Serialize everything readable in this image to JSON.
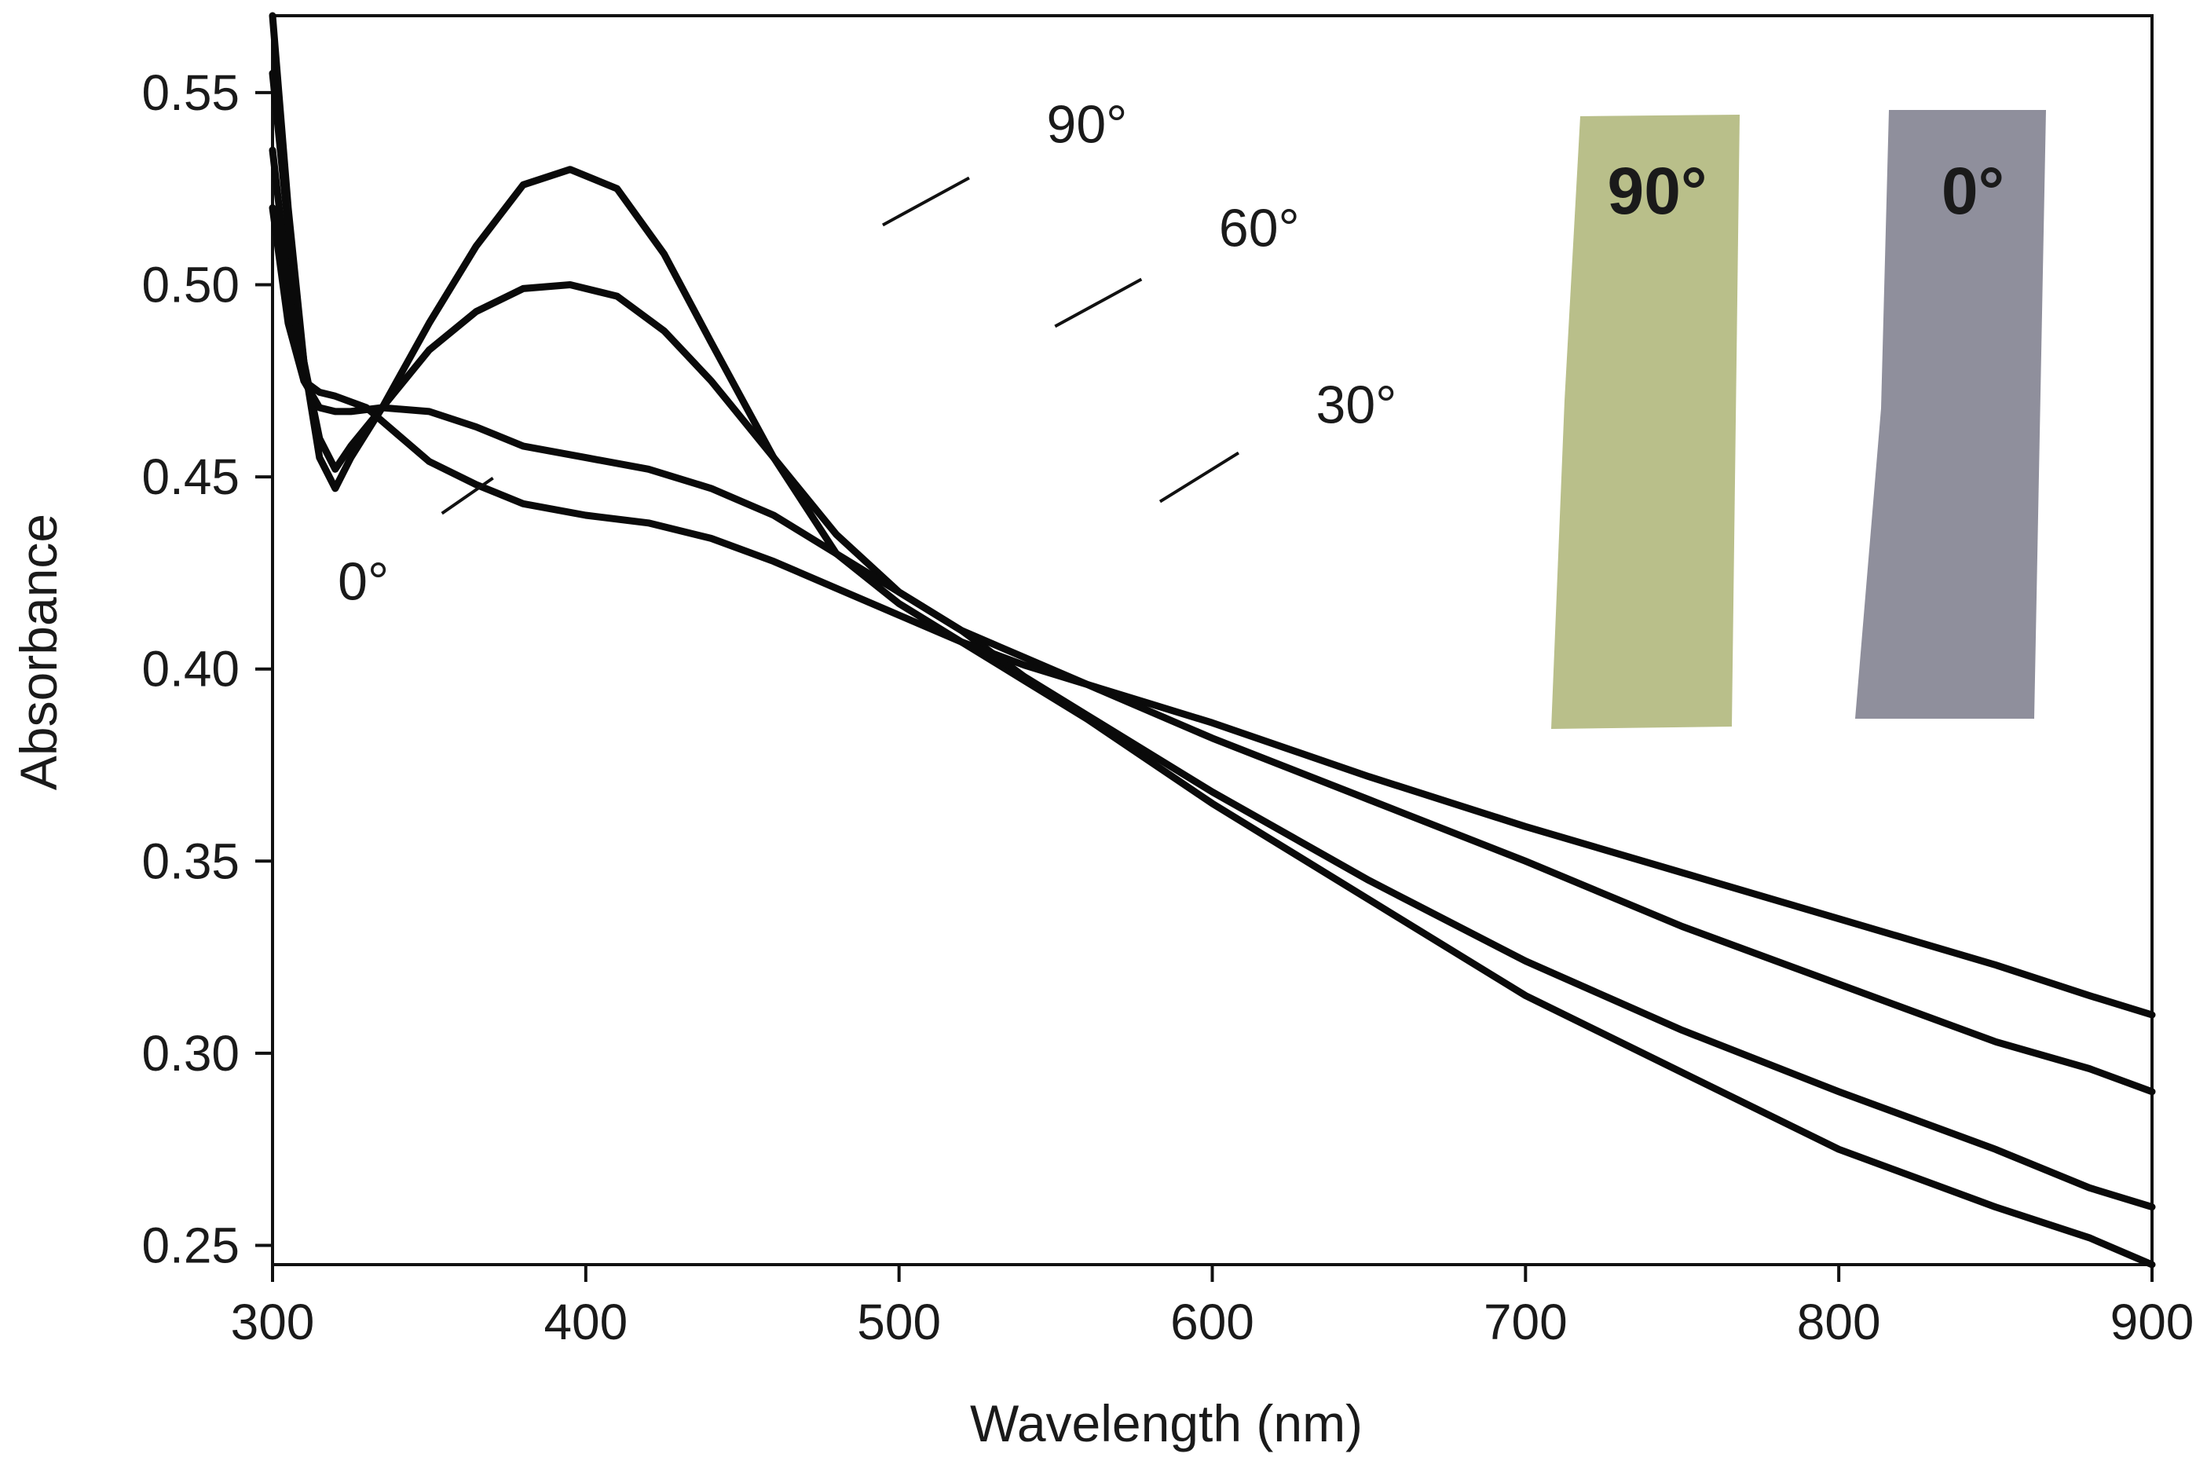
{
  "chart_data": {
    "type": "line",
    "title": "",
    "xlabel": "Wavelength (nm)",
    "ylabel": "Absorbance",
    "xlim": [
      300,
      900
    ],
    "ylim": [
      0.245,
      0.57
    ],
    "xticks": [
      300,
      400,
      500,
      600,
      700,
      800,
      900
    ],
    "xtick_labels": [
      "300",
      "400",
      "500",
      "600",
      "700",
      "800",
      "900"
    ],
    "yticks": [
      0.25,
      0.3,
      0.35,
      0.4,
      0.45,
      0.5,
      0.55
    ],
    "ytick_labels": [
      "0.25",
      "0.30",
      "0.35",
      "0.40",
      "0.45",
      "0.50",
      "0.55"
    ],
    "grid": false,
    "series": [
      {
        "name": "90°",
        "x": [
          300,
          305,
          310,
          315,
          320,
          325,
          335,
          350,
          365,
          380,
          395,
          410,
          425,
          440,
          460,
          480,
          500,
          520,
          540,
          560,
          600,
          650,
          700,
          750,
          800,
          850,
          880,
          900
        ],
        "y": [
          0.57,
          0.52,
          0.48,
          0.455,
          0.447,
          0.455,
          0.468,
          0.49,
          0.51,
          0.526,
          0.53,
          0.525,
          0.508,
          0.485,
          0.455,
          0.43,
          0.417,
          0.407,
          0.397,
          0.387,
          0.365,
          0.34,
          0.315,
          0.295,
          0.275,
          0.26,
          0.252,
          0.245
        ]
      },
      {
        "name": "60°",
        "x": [
          300,
          305,
          310,
          315,
          320,
          325,
          335,
          350,
          365,
          380,
          395,
          410,
          425,
          440,
          460,
          480,
          500,
          520,
          540,
          560,
          600,
          650,
          700,
          750,
          800,
          850,
          880,
          900
        ],
        "y": [
          0.555,
          0.515,
          0.48,
          0.46,
          0.452,
          0.458,
          0.468,
          0.483,
          0.493,
          0.499,
          0.5,
          0.497,
          0.488,
          0.475,
          0.455,
          0.435,
          0.42,
          0.41,
          0.398,
          0.388,
          0.368,
          0.345,
          0.324,
          0.306,
          0.29,
          0.275,
          0.265,
          0.26
        ]
      },
      {
        "name": "30°",
        "x": [
          300,
          305,
          310,
          315,
          320,
          325,
          335,
          350,
          365,
          380,
          400,
          420,
          440,
          460,
          480,
          500,
          520,
          540,
          560,
          600,
          650,
          700,
          750,
          800,
          850,
          880,
          900
        ],
        "y": [
          0.535,
          0.5,
          0.475,
          0.468,
          0.467,
          0.467,
          0.468,
          0.467,
          0.463,
          0.458,
          0.455,
          0.452,
          0.447,
          0.44,
          0.43,
          0.42,
          0.41,
          0.403,
          0.396,
          0.382,
          0.366,
          0.35,
          0.333,
          0.318,
          0.303,
          0.296,
          0.29
        ]
      },
      {
        "name": "0°",
        "x": [
          300,
          305,
          310,
          315,
          320,
          330,
          340,
          350,
          365,
          380,
          400,
          420,
          440,
          460,
          480,
          500,
          520,
          540,
          560,
          600,
          650,
          700,
          750,
          800,
          850,
          880,
          900
        ],
        "y": [
          0.52,
          0.49,
          0.475,
          0.472,
          0.471,
          0.468,
          0.461,
          0.454,
          0.448,
          0.443,
          0.44,
          0.438,
          0.434,
          0.428,
          0.421,
          0.414,
          0.407,
          0.401,
          0.396,
          0.386,
          0.372,
          0.359,
          0.347,
          0.335,
          0.323,
          0.315,
          0.31
        ]
      }
    ],
    "annotations": [
      {
        "text": "90°",
        "x": 560,
        "y": 0.537
      },
      {
        "text": "60°",
        "x": 615,
        "y": 0.51
      },
      {
        "text": "30°",
        "x": 646,
        "y": 0.464
      },
      {
        "text": "0°",
        "x": 329,
        "y": 0.418
      }
    ],
    "inset_samples": [
      {
        "label": "90°",
        "color": "#b9bf8a"
      },
      {
        "label": "0°",
        "color": "#8f8f9c"
      }
    ]
  }
}
